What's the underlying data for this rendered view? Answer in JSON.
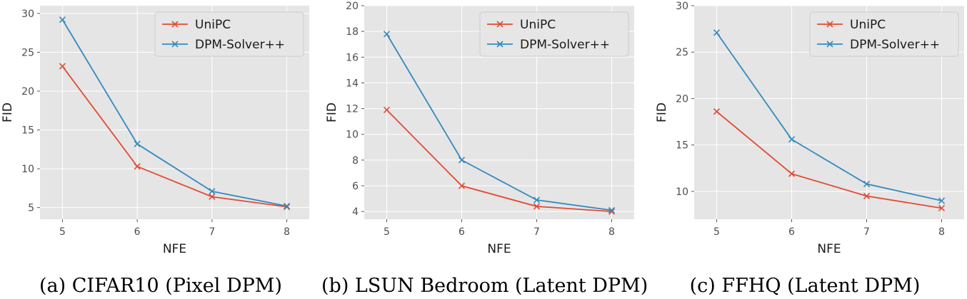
{
  "chart_data": [
    {
      "type": "line",
      "caption": "(a) CIFAR10 (Pixel DPM)",
      "xlabel": "NFE",
      "ylabel": "FID",
      "x": [
        5,
        6,
        7,
        8
      ],
      "xticks": [
        "5",
        "6",
        "7",
        "8"
      ],
      "yticks": [
        5,
        10,
        15,
        20,
        25,
        30
      ],
      "ylim": [
        3.5,
        31
      ],
      "xlim": [
        4.7,
        8.3
      ],
      "legend_position": "top-right",
      "grid": true,
      "series": [
        {
          "name": "UniPC",
          "color": "#E24A33",
          "values": [
            23.2,
            10.3,
            6.4,
            5.1
          ]
        },
        {
          "name": "DPM-Solver++",
          "color": "#348ABD",
          "values": [
            29.2,
            13.2,
            7.1,
            5.2
          ]
        }
      ]
    },
    {
      "type": "line",
      "caption": "(b) LSUN Bedroom (Latent DPM)",
      "xlabel": "NFE",
      "ylabel": "FID",
      "x": [
        5,
        6,
        7,
        8
      ],
      "xticks": [
        "5",
        "6",
        "7",
        "8"
      ],
      "yticks": [
        4,
        6,
        8,
        10,
        12,
        14,
        16,
        18,
        20
      ],
      "ylim": [
        3.4,
        20.0
      ],
      "xlim": [
        4.7,
        8.3
      ],
      "legend_position": "top-right",
      "grid": true,
      "series": [
        {
          "name": "UniPC",
          "color": "#E24A33",
          "values": [
            11.9,
            6.0,
            4.4,
            4.0
          ]
        },
        {
          "name": "DPM-Solver++",
          "color": "#348ABD",
          "values": [
            17.8,
            8.0,
            4.9,
            4.1
          ]
        }
      ]
    },
    {
      "type": "line",
      "caption": "(c) FFHQ (Latent DPM)",
      "xlabel": "NFE",
      "ylabel": "FID",
      "x": [
        5,
        6,
        7,
        8
      ],
      "xticks": [
        "5",
        "6",
        "7",
        "8"
      ],
      "yticks": [
        10,
        15,
        20,
        25,
        30
      ],
      "ylim": [
        7.0,
        30.0
      ],
      "xlim": [
        4.7,
        8.3
      ],
      "legend_position": "top-right",
      "grid": true,
      "series": [
        {
          "name": "UniPC",
          "color": "#E24A33",
          "values": [
            18.6,
            11.9,
            9.5,
            8.2
          ]
        },
        {
          "name": "DPM-Solver++",
          "color": "#348ABD",
          "values": [
            27.1,
            15.6,
            10.8,
            9.0
          ]
        }
      ]
    }
  ]
}
